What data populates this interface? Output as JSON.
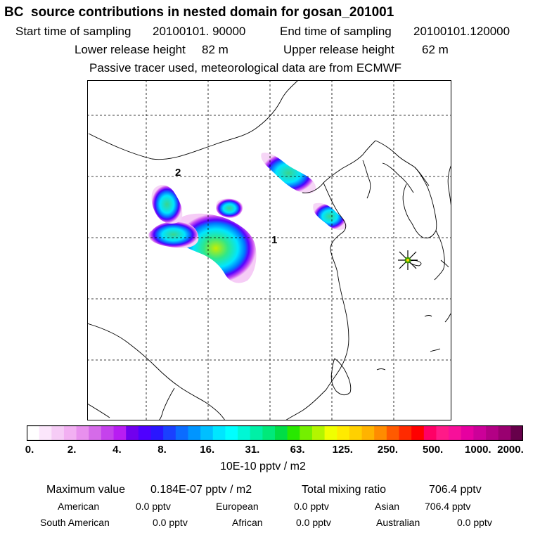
{
  "header": {
    "title": "BC  source contributions in nested domain for gosan_201001",
    "start_label": "Start time of sampling",
    "start_value": "20100101. 90000",
    "end_label": "End time of sampling",
    "end_value": "20100101.120000",
    "lower_label": "Lower release height",
    "lower_value": "82 m",
    "upper_label": "Upper release height",
    "upper_value": "62 m",
    "note": "Passive tracer used, meteorological data are from ECMWF"
  },
  "colors": {
    "map_lines": "#000000",
    "grid": "#000000",
    "receptor_marker": "#3a9a00",
    "star": "#ffd700"
  },
  "chart_data": {
    "type": "heatmap",
    "title": "BC  source contributions in nested domain for gosan_201001",
    "units": "10E-10 pptv / m2",
    "colorbar": {
      "tick_labels": [
        "0.",
        "2.",
        "4.",
        "8.",
        "16.",
        "31.",
        "63.",
        "125.",
        "250.",
        "500.",
        "1000.",
        "2000."
      ],
      "colors": [
        "#ffffff",
        "#fbe6fb",
        "#f6ccf6",
        "#f2b0f2",
        "#e890ee",
        "#d56be9",
        "#c542ec",
        "#b81df2",
        "#7100ee",
        "#4f00ff",
        "#2a16ff",
        "#1a40ff",
        "#0b6cff",
        "#0095ff",
        "#00bfff",
        "#00e6ff",
        "#00ffff",
        "#00f7d5",
        "#00f0a6",
        "#00e97a",
        "#00dd46",
        "#28e800",
        "#74ef00",
        "#b3f500",
        "#f0ff00",
        "#ffea00",
        "#ffd000",
        "#ffb300",
        "#ff8c00",
        "#ff5a00",
        "#ff2a00",
        "#ff0000",
        "#ff0066",
        "#ff1a88",
        "#f7109a",
        "#e600a0",
        "#cc0099",
        "#b30085",
        "#990070",
        "#66004a"
      ]
    },
    "source_regions": [
      {
        "label": "1",
        "center_lon": 114.4,
        "center_lat": 33.7,
        "peak_index": 26
      },
      {
        "label": "2",
        "center_lon": 109.6,
        "center_lat": 36.5,
        "peak_index": 20
      },
      {
        "label": "",
        "center_lon": 118.0,
        "center_lat": 39.0,
        "peak_index": 20
      },
      {
        "label": "",
        "center_lon": 119.2,
        "center_lat": 36.4,
        "peak_index": 20
      }
    ],
    "receptor": {
      "name": "gosan",
      "lon": 126.2,
      "lat": 33.3
    },
    "grid": {
      "lon": [
        105,
        110,
        115,
        120,
        125
      ],
      "lat": [
        25,
        30,
        35,
        40,
        45
      ]
    }
  },
  "stats": {
    "max_label": "Maximum value",
    "max_value": "0.184E-07 pptv / m2",
    "total_label": "Total mixing ratio",
    "total_value": "706.4 pptv",
    "regions": [
      {
        "name": "American",
        "value": "0.0 pptv"
      },
      {
        "name": "European",
        "value": "0.0 pptv"
      },
      {
        "name": "Asian",
        "value": "706.4 pptv"
      },
      {
        "name": "South American",
        "value": "0.0 pptv"
      },
      {
        "name": "African",
        "value": "0.0 pptv"
      },
      {
        "name": "Australian",
        "value": "0.0 pptv"
      }
    ]
  }
}
